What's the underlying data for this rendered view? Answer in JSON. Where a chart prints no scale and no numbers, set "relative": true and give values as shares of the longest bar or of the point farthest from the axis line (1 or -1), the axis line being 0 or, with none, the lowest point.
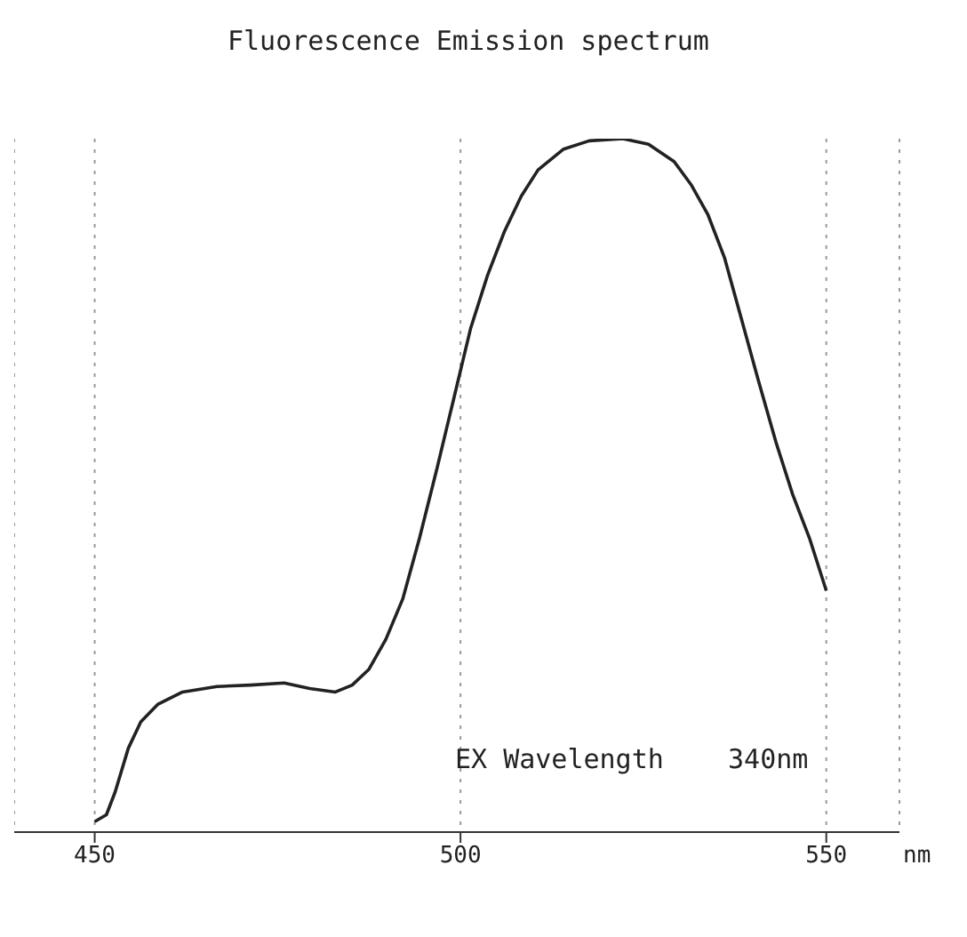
{
  "chart_data": {
    "type": "line",
    "title": "Fluorescence Emission spectrum",
    "xlabel": "nm",
    "annotations": [
      "EX Wavelength    340nm"
    ],
    "relative": true,
    "xlim": [
      439,
      560
    ],
    "xticks": [
      450,
      500,
      550
    ],
    "grid": "x",
    "marker": "none",
    "line_style": "solid",
    "x": [
      450.0,
      451.6,
      452.8,
      454.6,
      456.3,
      458.6,
      462.0,
      466.7,
      471.3,
      475.9,
      479.4,
      482.9,
      485.2,
      487.5,
      489.8,
      492.1,
      494.4,
      496.8,
      499.1,
      501.4,
      503.7,
      506.0,
      508.3,
      510.6,
      514.1,
      517.6,
      522.2,
      525.7,
      529.2,
      531.5,
      533.8,
      536.1,
      538.4,
      540.7,
      543.1,
      545.4,
      547.7,
      550.0
    ],
    "series": [
      {
        "color": "#222222",
        "values": [
          0.015,
          0.025,
          0.058,
          0.121,
          0.159,
          0.184,
          0.202,
          0.21,
          0.212,
          0.215,
          0.207,
          0.202,
          0.212,
          0.235,
          0.278,
          0.336,
          0.424,
          0.525,
          0.626,
          0.727,
          0.803,
          0.866,
          0.917,
          0.955,
          0.985,
          0.997,
          1.0,
          0.992,
          0.967,
          0.934,
          0.891,
          0.828,
          0.74,
          0.652,
          0.563,
          0.487,
          0.424,
          0.348
        ]
      }
    ]
  }
}
